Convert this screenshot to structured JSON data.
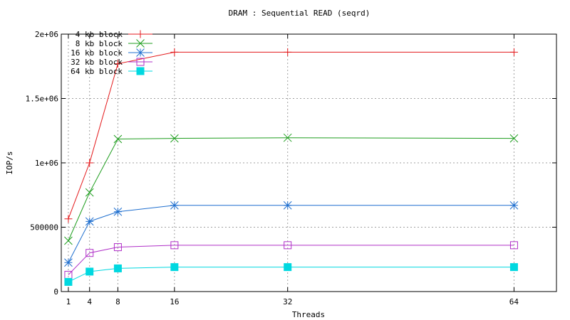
{
  "chart_data": {
    "type": "line",
    "title": "DRAM : Sequential READ (seqrd)",
    "xlabel": "Threads",
    "ylabel": "IOP/s",
    "xlim": [
      0,
      70
    ],
    "ylim": [
      0,
      2000000
    ],
    "x_ticks": [
      1,
      4,
      8,
      16,
      32,
      64
    ],
    "y_ticks": [
      0,
      500000,
      1000000,
      1500000,
      2000000
    ],
    "y_tick_labels": [
      "0",
      "500000",
      "1e+06",
      "1.5e+06",
      "2e+06"
    ],
    "grid": true,
    "legend_position": "top-left",
    "x": [
      1,
      4,
      8,
      16,
      32,
      64
    ],
    "series": [
      {
        "name": "4 kb block",
        "color": "#e41a1c",
        "marker": "plus",
        "values": [
          565000,
          1000000,
          1770000,
          1860000,
          1860000,
          1860000
        ]
      },
      {
        "name": "8 kb block",
        "color": "#1f9e1f",
        "marker": "x",
        "values": [
          395000,
          770000,
          1185000,
          1190000,
          1195000,
          1190000
        ]
      },
      {
        "name": "16 kb block",
        "color": "#1f6fcf",
        "marker": "star",
        "values": [
          225000,
          545000,
          620000,
          670000,
          670000,
          670000
        ]
      },
      {
        "name": "32 kb block",
        "color": "#b030c8",
        "marker": "open-square",
        "values": [
          130000,
          300000,
          345000,
          360000,
          360000,
          360000
        ]
      },
      {
        "name": "64 kb block",
        "color": "#00d8e0",
        "marker": "filled-square",
        "values": [
          75000,
          155000,
          180000,
          190000,
          190000,
          190000
        ]
      }
    ]
  }
}
